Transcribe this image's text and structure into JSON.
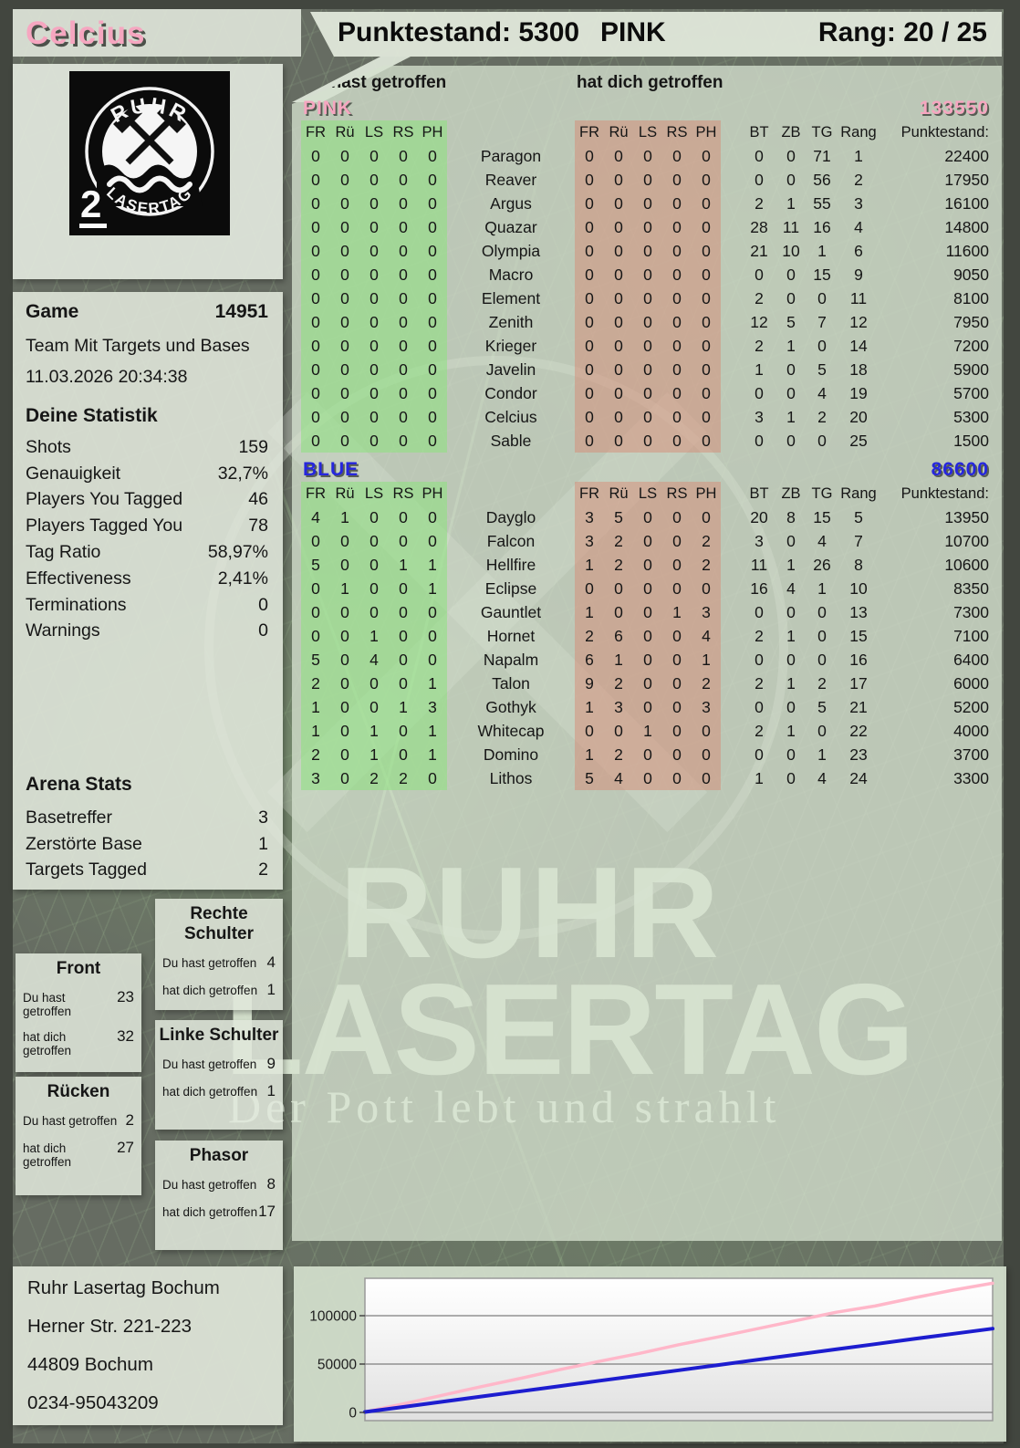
{
  "header": {
    "player_name": "Celcius",
    "punktestand": "Punktestand: 5300",
    "team": "PINK",
    "rang": "Rang: 20 / 25"
  },
  "logo": {
    "arc_top": "RUHR",
    "arc_bottom": "LASERTAG",
    "badge": "2"
  },
  "game_info": {
    "game_label": "Game",
    "game_number": "14951",
    "mode": "Team Mit Targets und Bases",
    "datetime": "11.03.2026 20:34:38"
  },
  "deine_statistik": {
    "title": "Deine Statistik",
    "rows": [
      {
        "label": "Shots",
        "value": "159"
      },
      {
        "label": "Genauigkeit",
        "value": "32,7%"
      },
      {
        "label": "Players You Tagged",
        "value": "46"
      },
      {
        "label": "Players Tagged You",
        "value": "78"
      },
      {
        "label": "Tag Ratio",
        "value": "58,97%"
      },
      {
        "label": "Effectiveness",
        "value": "2,41%"
      },
      {
        "label": "Terminations",
        "value": "0"
      },
      {
        "label": "Warnings",
        "value": "0"
      }
    ]
  },
  "arena_stats": {
    "title": "Arena Stats",
    "rows": [
      {
        "label": "Basetreffer",
        "value": "3"
      },
      {
        "label": "Zerstörte Base",
        "value": "1"
      },
      {
        "label": "Targets Tagged",
        "value": "2"
      }
    ]
  },
  "labels": {
    "you_hit": "Du hast getroffen",
    "hit_you": "hat dich getroffen"
  },
  "body_parts": [
    {
      "title": "Rechte Schulter",
      "du": "4",
      "dich": "1"
    },
    {
      "title": "Front",
      "du": "23",
      "dich": "32"
    },
    {
      "title": "Linke Schulter",
      "du": "9",
      "dich": "1"
    },
    {
      "title": "Rücken",
      "du": "2",
      "dich": "27"
    },
    {
      "title": "Phasor",
      "du": "8",
      "dich": "17"
    }
  ],
  "tables": {
    "hit_cols": [
      "FR",
      "Rü",
      "LS",
      "RS",
      "PH"
    ],
    "stat_cols": [
      "BT",
      "ZB",
      "TG",
      "Rang",
      "Punktestand:"
    ],
    "teams": [
      {
        "name": "PINK",
        "total": "133550",
        "color": "#f6a6c0",
        "players": [
          {
            "name": "Paragon",
            "you": [
              0,
              0,
              0,
              0,
              0
            ],
            "them": [
              0,
              0,
              0,
              0,
              0
            ],
            "bt": 0,
            "zb": 0,
            "tg": 71,
            "rang": 1,
            "punkte": "22400"
          },
          {
            "name": "Reaver",
            "you": [
              0,
              0,
              0,
              0,
              0
            ],
            "them": [
              0,
              0,
              0,
              0,
              0
            ],
            "bt": 0,
            "zb": 0,
            "tg": 56,
            "rang": 2,
            "punkte": "17950"
          },
          {
            "name": "Argus",
            "you": [
              0,
              0,
              0,
              0,
              0
            ],
            "them": [
              0,
              0,
              0,
              0,
              0
            ],
            "bt": 2,
            "zb": 1,
            "tg": 55,
            "rang": 3,
            "punkte": "16100"
          },
          {
            "name": "Quazar",
            "you": [
              0,
              0,
              0,
              0,
              0
            ],
            "them": [
              0,
              0,
              0,
              0,
              0
            ],
            "bt": 28,
            "zb": 11,
            "tg": 16,
            "rang": 4,
            "punkte": "14800"
          },
          {
            "name": "Olympia",
            "you": [
              0,
              0,
              0,
              0,
              0
            ],
            "them": [
              0,
              0,
              0,
              0,
              0
            ],
            "bt": 21,
            "zb": 10,
            "tg": 1,
            "rang": 6,
            "punkte": "11600"
          },
          {
            "name": "Macro",
            "you": [
              0,
              0,
              0,
              0,
              0
            ],
            "them": [
              0,
              0,
              0,
              0,
              0
            ],
            "bt": 0,
            "zb": 0,
            "tg": 15,
            "rang": 9,
            "punkte": "9050"
          },
          {
            "name": "Element",
            "you": [
              0,
              0,
              0,
              0,
              0
            ],
            "them": [
              0,
              0,
              0,
              0,
              0
            ],
            "bt": 2,
            "zb": 0,
            "tg": 0,
            "rang": 11,
            "punkte": "8100"
          },
          {
            "name": "Zenith",
            "you": [
              0,
              0,
              0,
              0,
              0
            ],
            "them": [
              0,
              0,
              0,
              0,
              0
            ],
            "bt": 12,
            "zb": 5,
            "tg": 7,
            "rang": 12,
            "punkte": "7950"
          },
          {
            "name": "Krieger",
            "you": [
              0,
              0,
              0,
              0,
              0
            ],
            "them": [
              0,
              0,
              0,
              0,
              0
            ],
            "bt": 2,
            "zb": 1,
            "tg": 0,
            "rang": 14,
            "punkte": "7200"
          },
          {
            "name": "Javelin",
            "you": [
              0,
              0,
              0,
              0,
              0
            ],
            "them": [
              0,
              0,
              0,
              0,
              0
            ],
            "bt": 1,
            "zb": 0,
            "tg": 5,
            "rang": 18,
            "punkte": "5900"
          },
          {
            "name": "Condor",
            "you": [
              0,
              0,
              0,
              0,
              0
            ],
            "them": [
              0,
              0,
              0,
              0,
              0
            ],
            "bt": 0,
            "zb": 0,
            "tg": 4,
            "rang": 19,
            "punkte": "5700"
          },
          {
            "name": "Celcius",
            "you": [
              0,
              0,
              0,
              0,
              0
            ],
            "them": [
              0,
              0,
              0,
              0,
              0
            ],
            "bt": 3,
            "zb": 1,
            "tg": 2,
            "rang": 20,
            "punkte": "5300"
          },
          {
            "name": "Sable",
            "you": [
              0,
              0,
              0,
              0,
              0
            ],
            "them": [
              0,
              0,
              0,
              0,
              0
            ],
            "bt": 0,
            "zb": 0,
            "tg": 0,
            "rang": 25,
            "punkte": "1500"
          }
        ]
      },
      {
        "name": "BLUE",
        "total": "86600",
        "color": "#2626dd",
        "players": [
          {
            "name": "Dayglo",
            "you": [
              4,
              1,
              0,
              0,
              0
            ],
            "them": [
              3,
              5,
              0,
              0,
              0
            ],
            "bt": 20,
            "zb": 8,
            "tg": 15,
            "rang": 5,
            "punkte": "13950"
          },
          {
            "name": "Falcon",
            "you": [
              0,
              0,
              0,
              0,
              0
            ],
            "them": [
              3,
              2,
              0,
              0,
              2
            ],
            "bt": 3,
            "zb": 0,
            "tg": 4,
            "rang": 7,
            "punkte": "10700"
          },
          {
            "name": "Hellfire",
            "you": [
              5,
              0,
              0,
              1,
              1
            ],
            "them": [
              1,
              2,
              0,
              0,
              2
            ],
            "bt": 11,
            "zb": 1,
            "tg": 26,
            "rang": 8,
            "punkte": "10600"
          },
          {
            "name": "Eclipse",
            "you": [
              0,
              1,
              0,
              0,
              1
            ],
            "them": [
              0,
              0,
              0,
              0,
              0
            ],
            "bt": 16,
            "zb": 4,
            "tg": 1,
            "rang": 10,
            "punkte": "8350"
          },
          {
            "name": "Gauntlet",
            "you": [
              0,
              0,
              0,
              0,
              0
            ],
            "them": [
              1,
              0,
              0,
              1,
              3
            ],
            "bt": 0,
            "zb": 0,
            "tg": 0,
            "rang": 13,
            "punkte": "7300"
          },
          {
            "name": "Hornet",
            "you": [
              0,
              0,
              1,
              0,
              0
            ],
            "them": [
              2,
              6,
              0,
              0,
              4
            ],
            "bt": 2,
            "zb": 1,
            "tg": 0,
            "rang": 15,
            "punkte": "7100"
          },
          {
            "name": "Napalm",
            "you": [
              5,
              0,
              4,
              0,
              0
            ],
            "them": [
              6,
              1,
              0,
              0,
              1
            ],
            "bt": 0,
            "zb": 0,
            "tg": 0,
            "rang": 16,
            "punkte": "6400"
          },
          {
            "name": "Talon",
            "you": [
              2,
              0,
              0,
              0,
              1
            ],
            "them": [
              9,
              2,
              0,
              0,
              2
            ],
            "bt": 2,
            "zb": 1,
            "tg": 2,
            "rang": 17,
            "punkte": "6000"
          },
          {
            "name": "Gothyk",
            "you": [
              1,
              0,
              0,
              1,
              3
            ],
            "them": [
              1,
              3,
              0,
              0,
              3
            ],
            "bt": 0,
            "zb": 0,
            "tg": 5,
            "rang": 21,
            "punkte": "5200"
          },
          {
            "name": "Whitecap",
            "you": [
              1,
              0,
              1,
              0,
              1
            ],
            "them": [
              0,
              0,
              1,
              0,
              0
            ],
            "bt": 2,
            "zb": 1,
            "tg": 0,
            "rang": 22,
            "punkte": "4000"
          },
          {
            "name": "Domino",
            "you": [
              2,
              0,
              1,
              0,
              1
            ],
            "them": [
              1,
              2,
              0,
              0,
              0
            ],
            "bt": 0,
            "zb": 0,
            "tg": 1,
            "rang": 23,
            "punkte": "3700"
          },
          {
            "name": "Lithos",
            "you": [
              3,
              0,
              2,
              2,
              0
            ],
            "them": [
              5,
              4,
              0,
              0,
              0
            ],
            "bt": 1,
            "zb": 0,
            "tg": 4,
            "rang": 24,
            "punkte": "3300"
          }
        ]
      }
    ]
  },
  "watermark": {
    "line1": "RUHR",
    "line2": "LASERTAG",
    "tagline": "Der Pott lebt und strahlt"
  },
  "address": {
    "line1": "Ruhr Lasertag Bochum",
    "line2": "Herner Str. 221-223",
    "line3": "44809 Bochum",
    "line4": "0234-95043209"
  },
  "chart_data": {
    "type": "line",
    "title": "",
    "xlabel": "",
    "ylabel": "",
    "ylim": [
      0,
      140000
    ],
    "yticks": [
      0,
      50000,
      100000
    ],
    "grid": true,
    "legend": "none",
    "series": [
      {
        "name": "PINK",
        "color": "#ffb7c9",
        "values": [
          500,
          9000,
          18000,
          27000,
          35500,
          44500,
          53000,
          61000,
          70000,
          78000,
          86500,
          95000,
          103500,
          110000,
          118500,
          126500,
          133550
        ]
      },
      {
        "name": "BLUE",
        "color": "#1d1dcf",
        "values": [
          500,
          5800,
          11200,
          16600,
          22000,
          27400,
          32800,
          38200,
          43600,
          49000,
          54400,
          59800,
          65200,
          70600,
          76000,
          81300,
          86600
        ]
      }
    ]
  }
}
